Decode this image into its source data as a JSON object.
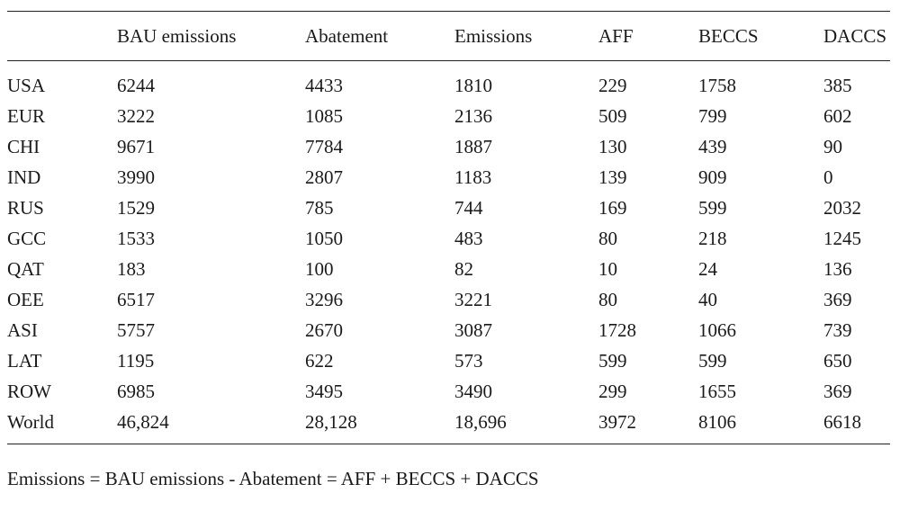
{
  "table": {
    "headers": [
      "",
      "BAU emissions",
      "Abatement",
      "Emissions",
      "AFF",
      "BECCS",
      "DACCS"
    ],
    "rows": [
      [
        "USA",
        "6244",
        "4433",
        "1810",
        "229",
        "1758",
        "385"
      ],
      [
        "EUR",
        "3222",
        "1085",
        "2136",
        "509",
        "799",
        "602"
      ],
      [
        "CHI",
        "9671",
        "7784",
        "1887",
        "130",
        "439",
        "90"
      ],
      [
        "IND",
        "3990",
        "2807",
        "1183",
        "139",
        "909",
        "0"
      ],
      [
        "RUS",
        "1529",
        "785",
        "744",
        "169",
        "599",
        "2032"
      ],
      [
        "GCC",
        "1533",
        "1050",
        "483",
        "80",
        "218",
        "1245"
      ],
      [
        "QAT",
        "183",
        "100",
        "82",
        "10",
        "24",
        "136"
      ],
      [
        "OEE",
        "6517",
        "3296",
        "3221",
        "80",
        "40",
        "369"
      ],
      [
        "ASI",
        "5757",
        "2670",
        "3087",
        "1728",
        "1066",
        "739"
      ],
      [
        "LAT",
        "1195",
        "622",
        "573",
        "599",
        "599",
        "650"
      ],
      [
        "ROW",
        "6985",
        "3495",
        "3490",
        "299",
        "1655",
        "369"
      ],
      [
        "World",
        "46,824",
        "28,128",
        "18,696",
        "3972",
        "8106",
        "6618"
      ]
    ]
  },
  "note": "Emissions = BAU emissions - Abatement = AFF + BECCS + DACCS"
}
